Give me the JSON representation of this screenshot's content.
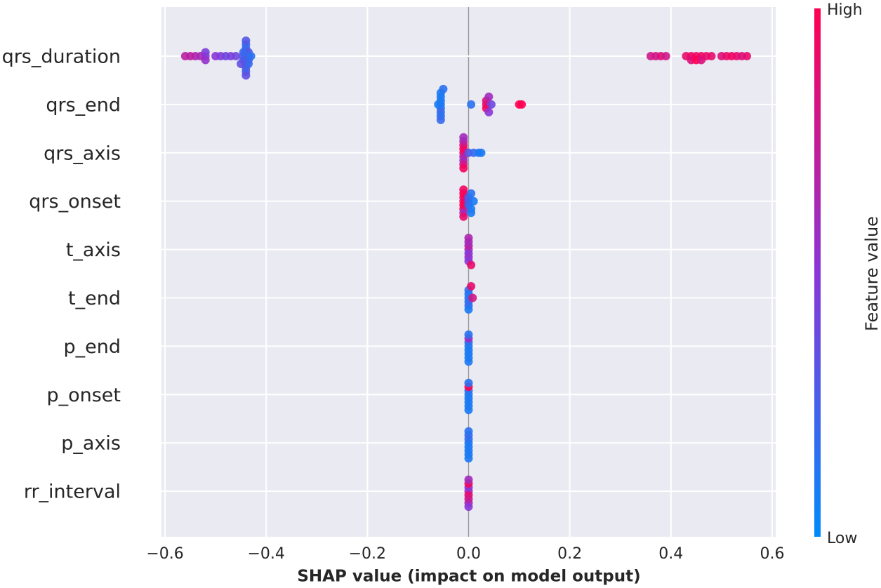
{
  "chart_data": {
    "type": "beeswarm",
    "xlabel": "SHAP value (impact on model output)",
    "xlim": [
      -0.607,
      0.607
    ],
    "xticks": [
      {
        "value": -0.6,
        "label": "−0.6"
      },
      {
        "value": -0.4,
        "label": "−0.4"
      },
      {
        "value": -0.2,
        "label": "−0.2"
      },
      {
        "value": 0,
        "label": "0.0"
      },
      0.2,
      0.4,
      0.6
    ],
    "grid": true,
    "colorbar": {
      "label": "Feature value",
      "high": "High",
      "low": "Low",
      "colormap": [
        "#008bfb",
        "#8a36d8",
        "#ff0051"
      ]
    },
    "series": [
      {
        "name": "qrs_duration",
        "values": [
          -0.44,
          -0.44,
          -0.44,
          -0.44,
          -0.44,
          -0.44,
          -0.44,
          -0.44,
          -0.44,
          -0.44,
          -0.435,
          -0.435,
          -0.435,
          -0.435,
          -0.445,
          -0.445,
          -0.445,
          -0.43,
          -0.45,
          -0.46,
          -0.47,
          -0.48,
          -0.49,
          -0.5,
          -0.52,
          -0.52,
          -0.52,
          -0.53,
          -0.54,
          -0.55,
          -0.56,
          0.36,
          0.37,
          0.38,
          0.39,
          0.43,
          0.44,
          0.44,
          0.45,
          0.45,
          0.46,
          0.46,
          0.47,
          0.48,
          0.5,
          0.51,
          0.52,
          0.53,
          0.54,
          0.55
        ],
        "feature_values": [
          0.2,
          0.25,
          0.3,
          0.2,
          0.25,
          0.3,
          0.2,
          0.25,
          0.3,
          0.35,
          0.2,
          0.25,
          0.3,
          0.2,
          0.3,
          0.25,
          0.2,
          0.15,
          0.35,
          0.4,
          0.45,
          0.4,
          0.45,
          0.5,
          0.5,
          0.55,
          0.45,
          0.6,
          0.65,
          0.7,
          0.7,
          0.8,
          0.8,
          0.85,
          0.8,
          0.9,
          0.95,
          0.85,
          0.9,
          1,
          0.95,
          0.85,
          0.9,
          0.9,
          0.85,
          0.9,
          0.95,
          0.9,
          0.85,
          0.9
        ]
      },
      {
        "name": "qrs_end",
        "values": [
          -0.055,
          -0.055,
          -0.055,
          -0.055,
          -0.055,
          -0.055,
          -0.055,
          -0.055,
          -0.05,
          -0.06,
          0.005,
          0.035,
          0.035,
          0.035,
          0.04,
          0.04,
          0.045,
          0.1,
          0.105
        ],
        "feature_values": [
          0.1,
          0.15,
          0.1,
          0.2,
          0.1,
          0.15,
          0.1,
          0.2,
          0.15,
          0.1,
          0.15,
          0.9,
          0.95,
          0.85,
          0.5,
          0.6,
          0.4,
          1,
          1
        ]
      },
      {
        "name": "qrs_axis",
        "values": [
          -0.01,
          -0.01,
          -0.01,
          -0.01,
          -0.01,
          -0.01,
          -0.01,
          -0.01,
          -0.01,
          0.0,
          0.01,
          0.02,
          0.025
        ],
        "feature_values": [
          0.9,
          0.7,
          0.95,
          0.6,
          0.9,
          0.8,
          0.7,
          0.95,
          0.6,
          0.3,
          0.2,
          0.1,
          0.1
        ]
      },
      {
        "name": "qrs_onset",
        "values": [
          -0.01,
          -0.01,
          -0.01,
          -0.01,
          -0.01,
          -0.01,
          -0.01,
          -0.01,
          0.0,
          0.0,
          0.0,
          0.005,
          0.005,
          0.005,
          0.01
        ],
        "feature_values": [
          0.95,
          1,
          0.9,
          0.95,
          1,
          0.6,
          0.95,
          0.9,
          0.3,
          0.2,
          0.25,
          0.1,
          0.15,
          0.1,
          0.1
        ]
      },
      {
        "name": "t_axis",
        "values": [
          0.0,
          0.0,
          0.0,
          0.0,
          0.0,
          0.0,
          0.0,
          0.005
        ],
        "feature_values": [
          0.6,
          0.5,
          0.7,
          0.55,
          0.6,
          0.5,
          0.65,
          0.9
        ]
      },
      {
        "name": "t_end",
        "values": [
          0.0,
          0.0,
          0.0,
          0.0,
          0.0,
          0.0,
          0.005,
          0.008
        ],
        "feature_values": [
          0.2,
          0.15,
          0.1,
          0.2,
          0.15,
          0.1,
          0.9,
          0.8
        ]
      },
      {
        "name": "p_end",
        "values": [
          0.0,
          0.0,
          0.0,
          0.0,
          0.0,
          0.0,
          0.0,
          0.0
        ],
        "feature_values": [
          0.1,
          0.1,
          0.15,
          0.1,
          0.6,
          0.1,
          0.15,
          0.1
        ]
      },
      {
        "name": "p_onset",
        "values": [
          0.0,
          0.0,
          0.0,
          0.0,
          0.0,
          0.0,
          0.0,
          0.0
        ],
        "feature_values": [
          0.1,
          0.1,
          0.15,
          0.1,
          1,
          0.1,
          0.15,
          0.1
        ]
      },
      {
        "name": "p_axis",
        "values": [
          0.0,
          0.0,
          0.0,
          0.0,
          0.0,
          0.0,
          0.0,
          0.0
        ],
        "feature_values": [
          0.1,
          0.1,
          0.15,
          0.1,
          0.2,
          0.1,
          0.15,
          0.1
        ]
      },
      {
        "name": "rr_interval",
        "values": [
          0.0,
          0.0,
          0.0,
          0.0,
          0.0,
          0.0,
          0.0,
          0.0
        ],
        "feature_values": [
          0.6,
          0.9,
          0.5,
          0.8,
          0.95,
          0.7,
          0.6,
          0.5
        ]
      }
    ]
  }
}
